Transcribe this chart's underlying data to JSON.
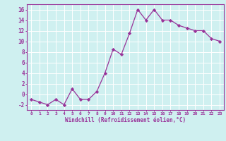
{
  "x": [
    0,
    1,
    2,
    3,
    4,
    5,
    6,
    7,
    8,
    9,
    10,
    11,
    12,
    13,
    14,
    15,
    16,
    17,
    18,
    19,
    20,
    21,
    22,
    23
  ],
  "y": [
    -1,
    -1.5,
    -2,
    -1,
    -2,
    1,
    -1,
    -1,
    0.5,
    4,
    8.5,
    7.5,
    11.5,
    16,
    14,
    16,
    14,
    14,
    13,
    12.5,
    12,
    12,
    10.5,
    10
  ],
  "line_color": "#993399",
  "marker_color": "#993399",
  "bg_color": "#cff0f0",
  "grid_color": "#ffffff",
  "xlabel": "Windchill (Refroidissement éolien,°C)",
  "tick_color": "#993399",
  "ylabel_ticks": [
    -2,
    0,
    2,
    4,
    6,
    8,
    10,
    12,
    14,
    16
  ],
  "xtick_labels": [
    "0",
    "1",
    "2",
    "3",
    "4",
    "5",
    "6",
    "7",
    "8",
    "9",
    "10",
    "11",
    "12",
    "13",
    "14",
    "15",
    "16",
    "17",
    "18",
    "19",
    "20",
    "21",
    "22",
    "23"
  ],
  "ylim": [
    -3,
    17
  ],
  "xlim": [
    -0.5,
    23.5
  ]
}
